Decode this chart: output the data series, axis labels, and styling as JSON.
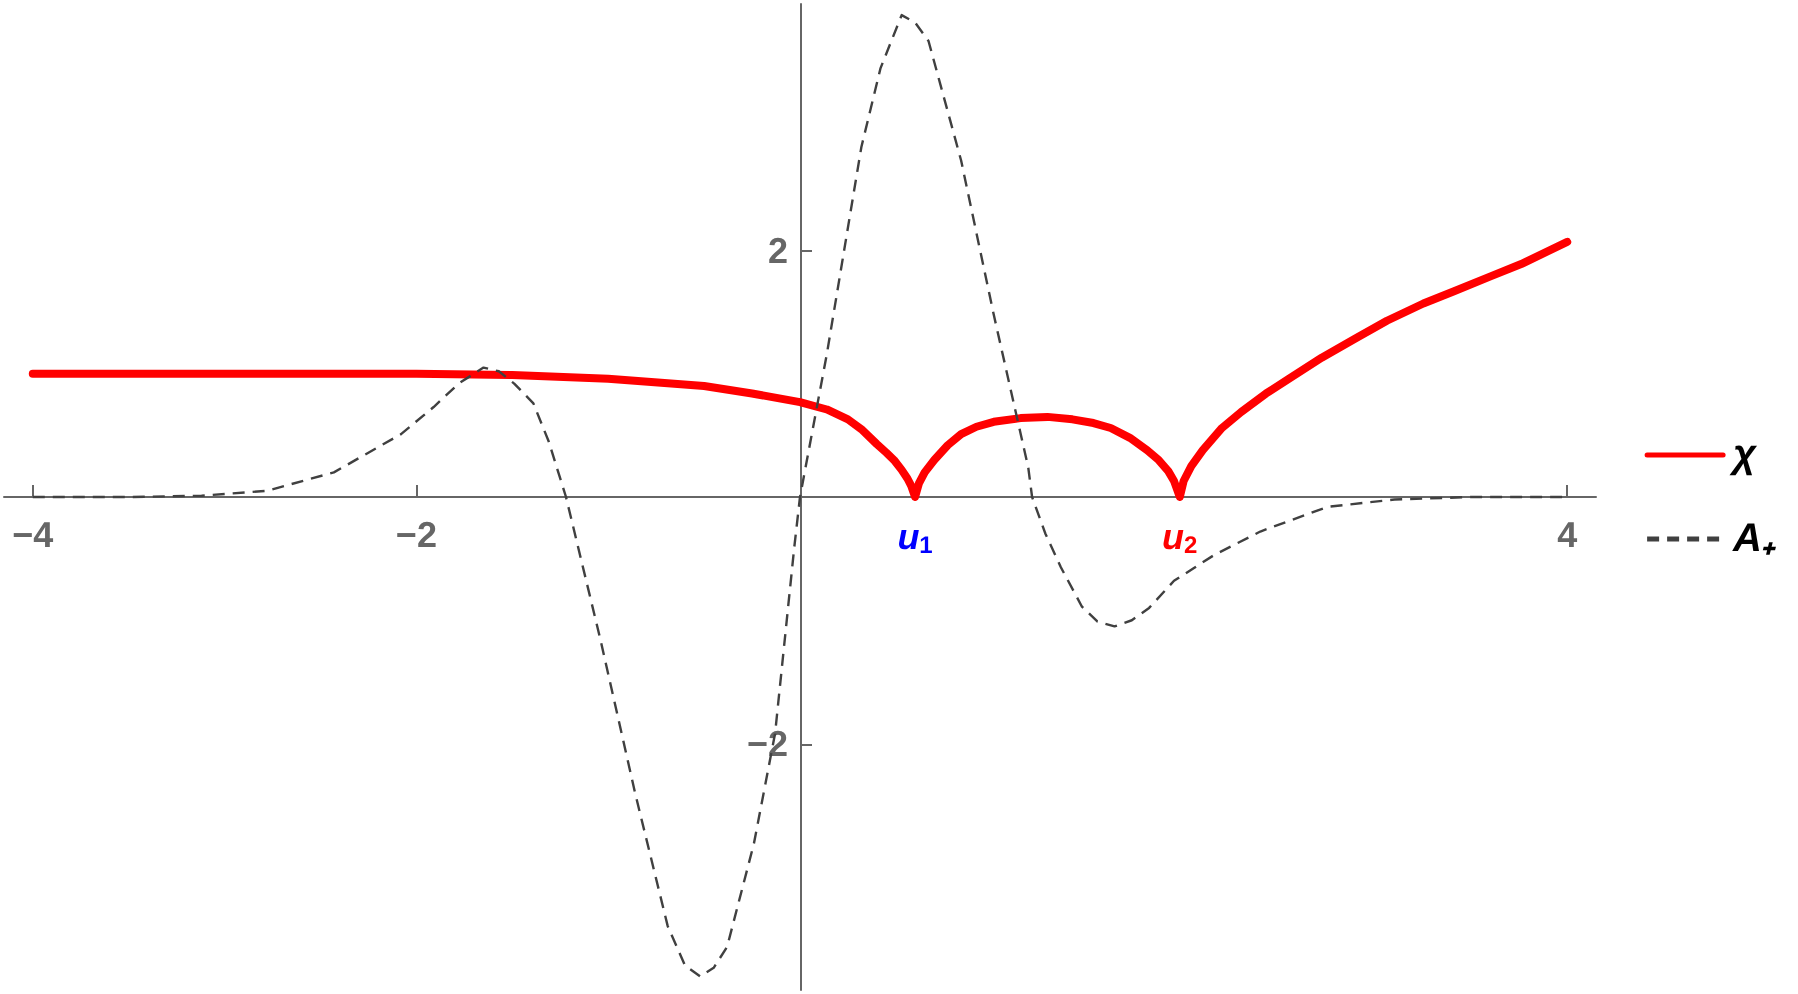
{
  "chart_data": {
    "type": "line",
    "series": [
      {
        "name": "χ",
        "color": "#ff0000",
        "line_style": "solid",
        "x": [
          -4,
          -3,
          -2,
          -1.5,
          -1,
          -0.5,
          -0.25,
          0,
          0.14,
          0.25,
          0.32,
          0.4,
          0.45,
          0.49,
          0.53,
          0.56,
          0.58,
          0.6,
          0.62,
          0.65,
          0.7,
          0.77,
          0.84,
          0.92,
          1.01,
          1.15,
          1.29,
          1.42,
          1.53,
          1.62,
          1.72,
          1.81,
          1.87,
          1.92,
          1.95,
          1.98,
          2,
          2.04,
          2.1,
          2.2,
          2.3,
          2.43,
          2.55,
          2.72,
          2.9,
          3.06,
          3.25,
          3.41,
          3.6,
          3.76,
          4
        ],
        "values": [
          1,
          1,
          1,
          0.99,
          0.96,
          0.9,
          0.84,
          0.77,
          0.71,
          0.63,
          0.55,
          0.43,
          0.36,
          0.3,
          0.22,
          0.15,
          0.09,
          0,
          0.11,
          0.2,
          0.3,
          0.42,
          0.51,
          0.57,
          0.61,
          0.64,
          0.65,
          0.63,
          0.6,
          0.56,
          0.48,
          0.38,
          0.3,
          0.21,
          0.13,
          0,
          0.13,
          0.25,
          0.38,
          0.56,
          0.69,
          0.84,
          0.96,
          1.13,
          1.29,
          1.43,
          1.57,
          1.67,
          1.79,
          1.89,
          2.07
        ]
      },
      {
        "name": "A₊",
        "color": "#404040",
        "line_style": "dashed",
        "x": [
          -4,
          -3.5,
          -3.12,
          -2.78,
          -2.43,
          -2.08,
          -1.91,
          -1.78,
          -1.65,
          -1.57,
          -1.49,
          -1.39,
          -1.31,
          -1.22,
          -1.04,
          -0.86,
          -0.69,
          -0.6,
          -0.52,
          -0.45,
          -0.38,
          -0.24,
          -0.13,
          -0.03,
          0,
          0.14,
          0.32,
          0.42,
          0.53,
          0.6,
          0.67,
          0.84,
          1.01,
          1.19,
          1.21,
          1.28,
          1.36,
          1.47,
          1.55,
          1.64,
          1.73,
          1.82,
          1.95,
          2.05,
          2.16,
          2.4,
          2.75,
          3.1,
          3.5,
          4
        ],
        "values": [
          0,
          0,
          0.01,
          0.05,
          0.2,
          0.51,
          0.73,
          0.92,
          1.05,
          1.02,
          0.92,
          0.76,
          0.45,
          0,
          -1.16,
          -2.4,
          -3.48,
          -3.8,
          -3.89,
          -3.82,
          -3.65,
          -2.81,
          -1.92,
          -0.41,
          0,
          1.16,
          2.84,
          3.48,
          3.91,
          3.85,
          3.7,
          2.73,
          1.48,
          0.24,
          0,
          -0.3,
          -0.57,
          -0.89,
          -1.01,
          -1.05,
          -1,
          -0.9,
          -0.68,
          -0.58,
          -0.47,
          -0.28,
          -0.08,
          -0.02,
          0,
          0
        ]
      }
    ],
    "xlim": [
      -4.15,
      4.15
    ],
    "xticks": [
      -4,
      -2,
      {
        "value": 0.6,
        "label": "u$_{1}$"
      },
      {
        "value": 1.98,
        "label": "u$_{2}$"
      },
      4
    ],
    "ylim": [
      -4,
      4
    ],
    "yticks": [
      -2,
      2
    ],
    "grid": false,
    "legend": "right",
    "marker": "none"
  }
}
